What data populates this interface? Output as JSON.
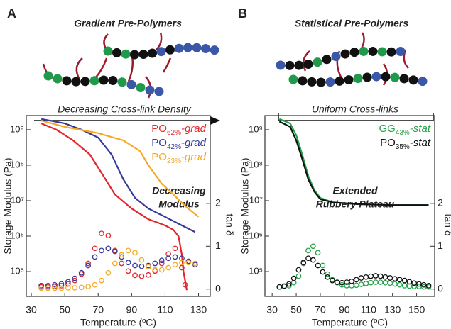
{
  "figure": {
    "panels": [
      {
        "label": "A",
        "schematic_title": "Gradient Pre-Polymers",
        "schematic_caption": "Decreasing Cross-link Density"
      },
      {
        "label": "B",
        "schematic_title": "Statistical Pre-Polymers",
        "schematic_caption": "Uniform Cross-links"
      }
    ]
  },
  "chart_data": [
    {
      "type": "line",
      "xlabel": "Temperature (ºC)",
      "ylabel": "Storage Modulus (Pa)",
      "y2label": "tan δ",
      "annotation": [
        "Decreasing",
        "Modulus"
      ],
      "xlim": [
        27,
        137
      ],
      "xticks": [
        30,
        50,
        70,
        90,
        110,
        130
      ],
      "ylim": [
        20000,
        2500000000
      ],
      "log_y": true,
      "yticks": [
        {
          "value": 100000,
          "label": "10⁵"
        },
        {
          "value": 1000000,
          "label": "10⁶"
        },
        {
          "value": 10000000,
          "label": "10⁷"
        },
        {
          "value": 100000000,
          "label": "10⁸"
        },
        {
          "value": 1000000000,
          "label": "10⁹"
        }
      ],
      "y2lim": [
        -0.17,
        4.05
      ],
      "y2ticks": [
        0,
        1,
        2
      ],
      "legend": "upper right",
      "series": [
        {
          "name": "PO62%-grad",
          "color": "#e3262b",
          "x": [
            36,
            45,
            55,
            65,
            72,
            80,
            90,
            100,
            110,
            115,
            118,
            120,
            121,
            123
          ],
          "values": [
            1500000000,
            1000000000,
            500000000,
            200000000,
            60000000,
            15000000,
            6000000,
            3000000,
            2000000,
            1500000,
            1000000,
            300000,
            100000,
            30000
          ]
        },
        {
          "name": "PO42%-grad",
          "color": "#35399a",
          "x": [
            36,
            50,
            60,
            70,
            78,
            85,
            92,
            100,
            110,
            120,
            128
          ],
          "values": [
            2000000000,
            1500000000,
            1000000000,
            600000000,
            200000000,
            40000000,
            12000000,
            6000000,
            3500000,
            2000000,
            1300000
          ]
        },
        {
          "name": "PO23%-grad",
          "color": "#f7a823",
          "x": [
            36,
            50,
            70,
            85,
            95,
            100,
            108,
            115,
            122,
            130
          ],
          "values": [
            1800000000,
            1200000000,
            800000000,
            500000000,
            250000000,
            100000000,
            30000000,
            15000000,
            7000000,
            3500000
          ]
        },
        {
          "type": "scatter",
          "axis": "y2",
          "color": "#e3262b",
          "x": [
            36,
            40,
            44,
            48,
            52,
            56,
            60,
            64,
            68,
            72,
            76,
            80,
            84,
            88,
            92,
            96,
            100,
            104,
            108,
            112,
            116,
            120,
            122
          ],
          "values": [
            0.05,
            0.05,
            0.06,
            0.08,
            0.12,
            0.2,
            0.35,
            0.6,
            0.95,
            1.3,
            1.25,
            0.9,
            0.6,
            0.42,
            0.32,
            0.3,
            0.33,
            0.42,
            0.6,
            0.82,
            0.95,
            0.5,
            0.1
          ]
        },
        {
          "type": "scatter",
          "axis": "y2",
          "color": "#35399a",
          "x": [
            36,
            40,
            44,
            48,
            52,
            56,
            60,
            64,
            68,
            72,
            76,
            80,
            84,
            88,
            92,
            96,
            100,
            104,
            108,
            112,
            116,
            120,
            124,
            128
          ],
          "values": [
            0.08,
            0.08,
            0.1,
            0.12,
            0.17,
            0.25,
            0.38,
            0.55,
            0.75,
            0.9,
            0.95,
            0.88,
            0.75,
            0.62,
            0.55,
            0.53,
            0.55,
            0.6,
            0.67,
            0.72,
            0.75,
            0.72,
            0.65,
            0.57
          ]
        },
        {
          "type": "scatter",
          "axis": "y2",
          "color": "#f7a823",
          "x": [
            36,
            40,
            44,
            48,
            52,
            56,
            60,
            64,
            68,
            72,
            76,
            80,
            84,
            88,
            92,
            96,
            100,
            104,
            108,
            112,
            116,
            120,
            124,
            128
          ],
          "values": [
            0.02,
            0.02,
            0.02,
            0.02,
            0.03,
            0.03,
            0.04,
            0.06,
            0.1,
            0.2,
            0.38,
            0.6,
            0.8,
            0.9,
            0.85,
            0.68,
            0.52,
            0.45,
            0.45,
            0.5,
            0.57,
            0.62,
            0.62,
            0.6
          ]
        }
      ]
    },
    {
      "type": "line",
      "xlabel": "Temperature (ºC)",
      "ylabel": "Storage Modulus (Pa)",
      "y2label": "tan δ",
      "annotation": [
        "Extended",
        "Rubbery Plateau"
      ],
      "xlim": [
        24,
        165
      ],
      "xticks": [
        30,
        50,
        70,
        90,
        110,
        130,
        150
      ],
      "ylim": [
        20000,
        2500000000
      ],
      "log_y": true,
      "yticks": [
        {
          "value": 100000,
          "label": "10⁵"
        },
        {
          "value": 1000000,
          "label": "10⁶"
        },
        {
          "value": 10000000,
          "label": "10⁷"
        },
        {
          "value": 100000000,
          "label": "10⁸"
        },
        {
          "value": 1000000000,
          "label": "10⁹"
        }
      ],
      "y2lim": [
        -0.17,
        4.05
      ],
      "y2ticks": [
        0,
        1,
        2
      ],
      "legend": "upper right",
      "series": [
        {
          "name": "GG43%-stat",
          "color": "#26a04a",
          "x": [
            36,
            45,
            50,
            55,
            60,
            65,
            70,
            80,
            100,
            130,
            160
          ],
          "values": [
            2000000000,
            1500000000,
            700000000,
            200000000,
            50000000,
            20000000,
            12000000,
            9000000,
            8000000,
            7500000,
            7500000
          ]
        },
        {
          "name": "PO35%-stat",
          "color": "#111111",
          "x": [
            36,
            45,
            50,
            55,
            60,
            65,
            70,
            80,
            100,
            130,
            160
          ],
          "values": [
            1700000000,
            1200000000,
            500000000,
            150000000,
            40000000,
            18000000,
            11000000,
            9000000,
            8000000,
            7500000,
            7500000
          ]
        },
        {
          "type": "scatter",
          "axis": "y2",
          "color": "#26a04a",
          "x": [
            36,
            40,
            44,
            48,
            52,
            56,
            60,
            64,
            68,
            72,
            76,
            80,
            84,
            88,
            92,
            96,
            100,
            104,
            108,
            112,
            116,
            120,
            124,
            128,
            132,
            136,
            140,
            144,
            148,
            152,
            156,
            160
          ],
          "values": [
            0.05,
            0.06,
            0.08,
            0.15,
            0.3,
            0.6,
            0.9,
            1.0,
            0.85,
            0.55,
            0.35,
            0.22,
            0.15,
            0.1,
            0.08,
            0.08,
            0.09,
            0.11,
            0.13,
            0.15,
            0.16,
            0.16,
            0.15,
            0.14,
            0.12,
            0.1,
            0.08,
            0.07,
            0.06,
            0.06,
            0.05,
            0.05
          ]
        },
        {
          "type": "scatter",
          "axis": "y2",
          "color": "#111111",
          "x": [
            36,
            40,
            44,
            48,
            52,
            56,
            60,
            64,
            68,
            72,
            76,
            80,
            84,
            88,
            92,
            96,
            100,
            104,
            108,
            112,
            116,
            120,
            124,
            128,
            132,
            136,
            140,
            144,
            148,
            152,
            156,
            160
          ],
          "values": [
            0.05,
            0.07,
            0.12,
            0.25,
            0.45,
            0.62,
            0.72,
            0.68,
            0.55,
            0.4,
            0.28,
            0.2,
            0.16,
            0.15,
            0.16,
            0.18,
            0.22,
            0.26,
            0.28,
            0.3,
            0.31,
            0.3,
            0.28,
            0.26,
            0.24,
            0.22,
            0.2,
            0.17,
            0.14,
            0.12,
            0.1,
            0.08
          ]
        }
      ]
    }
  ]
}
